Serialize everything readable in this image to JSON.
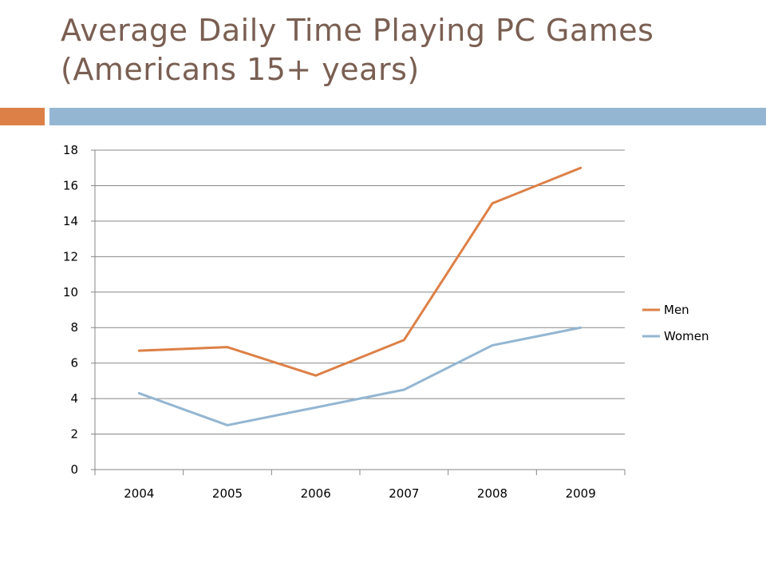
{
  "slide": {
    "title_line1": "Average Daily Time Playing PC Games",
    "title_line2": "(Americans 15+ years)",
    "accent_colors": {
      "left": "#dd8047",
      "right": "#94b6d2",
      "title": "#7a5f52"
    }
  },
  "chart_data": {
    "type": "line",
    "title": "Average Daily Time Playing PC Games (Americans 15+ years)",
    "xlabel": "",
    "ylabel": "",
    "categories": [
      "2004",
      "2005",
      "2006",
      "2007",
      "2008",
      "2009"
    ],
    "series": [
      {
        "name": "Men",
        "color": "#dd8047",
        "values": [
          6.7,
          6.9,
          5.3,
          7.3,
          15,
          17
        ]
      },
      {
        "name": "Women",
        "color": "#94b6d2",
        "values": [
          4.3,
          2.5,
          3.5,
          4.5,
          7,
          8
        ]
      }
    ],
    "ylim": [
      0,
      18
    ],
    "ytick_step": 2,
    "yticks": [
      "0",
      "2",
      "4",
      "6",
      "8",
      "10",
      "12",
      "14",
      "16",
      "18"
    ],
    "grid": "horizontal",
    "legend": "right"
  }
}
